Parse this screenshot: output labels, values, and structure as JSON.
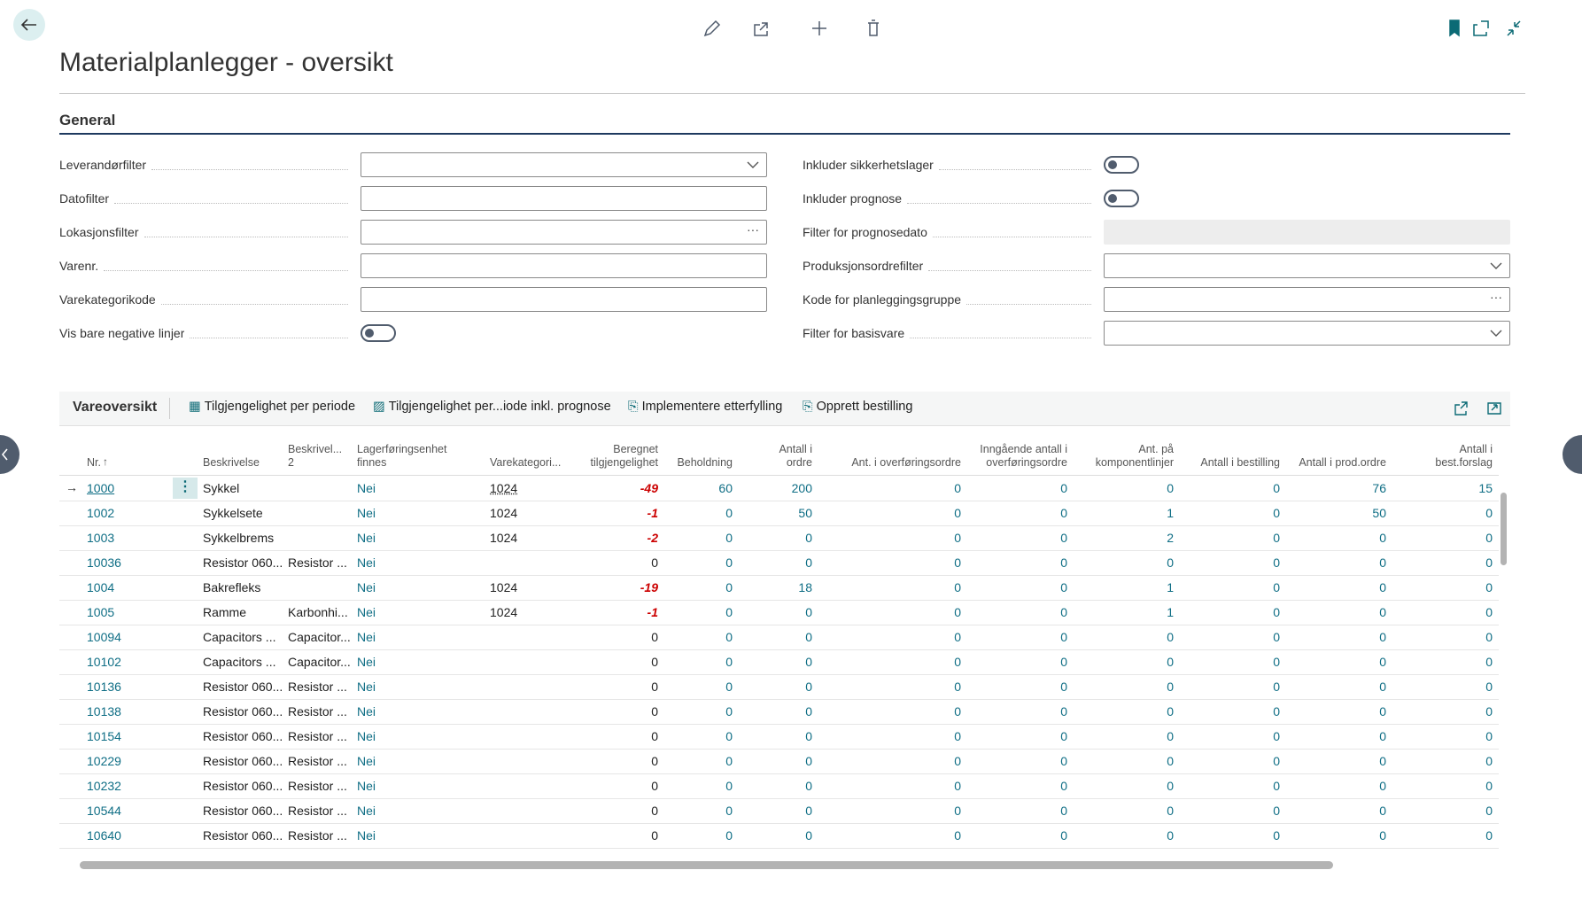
{
  "header": {
    "title": "Materialplanlegger - oversikt"
  },
  "general": {
    "title": "General",
    "left_fields": [
      "Leverandørfilter",
      "Datofilter",
      "Lokasjonsfilter",
      "Varenr.",
      "Varekategorikode",
      "Vis bare negative linjer"
    ],
    "right_fields": [
      "Inkluder sikkerhetslager",
      "Inkluder prognose",
      "Filter for prognosedato",
      "Produksjonsordrefilter",
      "Kode for planleggingsgruppe",
      "Filter for basisvare"
    ]
  },
  "list": {
    "title": "Vareoversikt",
    "actions": [
      "Tilgjengelighet per periode",
      "Tilgjengelighet per...iode inkl. prognose",
      "Implementere etterfylling",
      "Opprett bestilling"
    ],
    "columns": [
      "Nr.",
      "Beskrivelse",
      "Beskrivel... 2",
      "Lagerføringsenhet finnes",
      "Varekategori...",
      "Beregnet tilgjengelighet",
      "Beholdning",
      "Antall i ordre",
      "Ant. i overføringsordre",
      "Inngående antall i overføringsordre",
      "Ant. på komponentlinjer",
      "Antall i bestilling",
      "Antall i prod.ordre",
      "Antall i best.forslag"
    ],
    "rows": [
      [
        "1000",
        "Sykkel",
        null,
        "Nei",
        "1024",
        -49,
        60,
        200,
        0,
        0,
        0,
        0,
        76,
        15
      ],
      [
        "1002",
        "Sykkelsete",
        null,
        "Nei",
        "1024",
        -1,
        0,
        50,
        0,
        0,
        1,
        0,
        50,
        0
      ],
      [
        "1003",
        "Sykkelbrems",
        null,
        "Nei",
        "1024",
        -2,
        0,
        0,
        0,
        0,
        2,
        0,
        0,
        0
      ],
      [
        "10036",
        "Resistor 060...",
        "Resistor ...",
        "Nei",
        null,
        0,
        0,
        0,
        0,
        0,
        0,
        0,
        0,
        0
      ],
      [
        "1004",
        "Bakrefleks",
        null,
        "Nei",
        "1024",
        -19,
        0,
        18,
        0,
        0,
        1,
        0,
        0,
        0
      ],
      [
        "1005",
        "Ramme",
        "Karbonhi...",
        "Nei",
        "1024",
        -1,
        0,
        0,
        0,
        0,
        1,
        0,
        0,
        0
      ],
      [
        "10094",
        "Capacitors ...",
        "Capacitor...",
        "Nei",
        null,
        0,
        0,
        0,
        0,
        0,
        0,
        0,
        0,
        0
      ],
      [
        "10102",
        "Capacitors ...",
        "Capacitor...",
        "Nei",
        null,
        0,
        0,
        0,
        0,
        0,
        0,
        0,
        0,
        0
      ],
      [
        "10136",
        "Resistor 060...",
        "Resistor ...",
        "Nei",
        null,
        0,
        0,
        0,
        0,
        0,
        0,
        0,
        0,
        0
      ],
      [
        "10138",
        "Resistor 060...",
        "Resistor ...",
        "Nei",
        null,
        0,
        0,
        0,
        0,
        0,
        0,
        0,
        0,
        0
      ],
      [
        "10154",
        "Resistor 060...",
        "Resistor ...",
        "Nei",
        null,
        0,
        0,
        0,
        0,
        0,
        0,
        0,
        0,
        0
      ],
      [
        "10229",
        "Resistor 060...",
        "Resistor ...",
        "Nei",
        null,
        0,
        0,
        0,
        0,
        0,
        0,
        0,
        0,
        0
      ],
      [
        "10232",
        "Resistor 060...",
        "Resistor ...",
        "Nei",
        null,
        0,
        0,
        0,
        0,
        0,
        0,
        0,
        0,
        0
      ],
      [
        "10544",
        "Resistor 060...",
        "Resistor ...",
        "Nei",
        null,
        0,
        0,
        0,
        0,
        0,
        0,
        0,
        0,
        0
      ],
      [
        "10640",
        "Resistor 060...",
        "Resistor ...",
        "Nei",
        null,
        0,
        0,
        0,
        0,
        0,
        0,
        0,
        0,
        0
      ]
    ]
  }
}
